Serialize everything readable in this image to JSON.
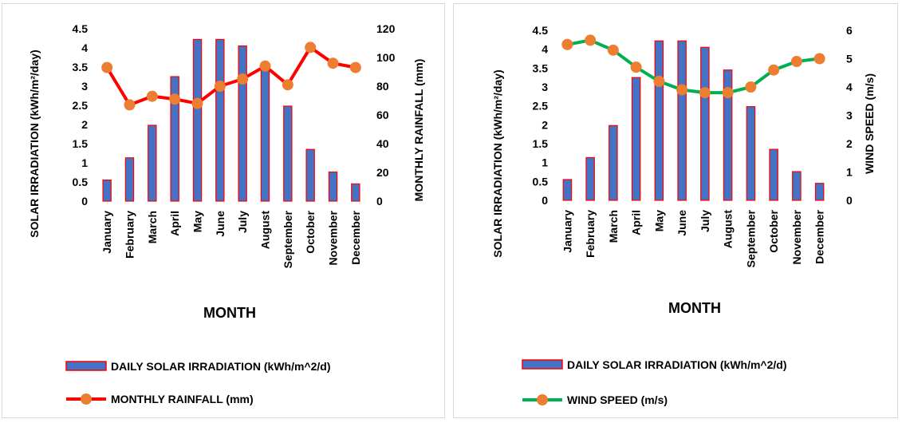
{
  "chart_data": [
    {
      "type": "bar",
      "categories": [
        "January",
        "February",
        "March",
        "April",
        "May",
        "June",
        "July",
        "August",
        "September",
        "October",
        "November",
        "December"
      ],
      "xlabel": "MONTH",
      "ylabel": "SOLAR IRRADIATION (kWh/m²/day)",
      "y2label": "MONTHLY RAINFALL (mm)",
      "ylim": [
        0,
        4.5
      ],
      "y2lim": [
        0,
        120
      ],
      "yticks": [
        "0",
        "0.5",
        "1",
        "1.5",
        "2",
        "2.5",
        "3",
        "3.5",
        "4",
        "4.5"
      ],
      "y2ticks": [
        "0",
        "20",
        "40",
        "60",
        "80",
        "100",
        "120"
      ],
      "grid": false,
      "legend_position": "bottom",
      "series": [
        {
          "name": "DAILY SOLAR IRRADIATION (kWh/m^2/d)",
          "kind": "bar",
          "axis": "left",
          "color": "#4472c4",
          "edge_color": "#ff0000",
          "values": [
            0.55,
            1.13,
            1.98,
            3.25,
            4.22,
            4.22,
            4.05,
            3.45,
            2.48,
            1.35,
            0.76,
            0.45
          ]
        },
        {
          "name": "MONTHLY RAINFALL (mm)",
          "kind": "line",
          "axis": "right",
          "color": "#ff0000",
          "marker_color": "#ed7d31",
          "values": [
            93,
            67,
            73,
            71,
            68,
            80,
            85,
            94,
            81,
            107,
            96,
            93
          ]
        }
      ]
    },
    {
      "type": "bar",
      "categories": [
        "January",
        "February",
        "March",
        "April",
        "May",
        "June",
        "July",
        "August",
        "September",
        "October",
        "November",
        "December"
      ],
      "xlabel": "MONTH",
      "ylabel": "SOLAR IRRADIATION (kWh/m²/day)",
      "y2label": "WIND SPEED (m/s)",
      "ylim": [
        0,
        4.5
      ],
      "y2lim": [
        0,
        6
      ],
      "yticks": [
        "0",
        "0.5",
        "1",
        "1.5",
        "2",
        "2.5",
        "3",
        "3.5",
        "4",
        "4.5"
      ],
      "y2ticks": [
        "0",
        "1",
        "2",
        "3",
        "4",
        "5",
        "6"
      ],
      "grid": false,
      "legend_position": "bottom",
      "series": [
        {
          "name": "DAILY SOLAR IRRADIATION (kWh/m^2/d)",
          "kind": "bar",
          "axis": "left",
          "color": "#4472c4",
          "edge_color": "#ff0000",
          "values": [
            0.55,
            1.13,
            1.98,
            3.25,
            4.22,
            4.22,
            4.05,
            3.45,
            2.48,
            1.35,
            0.76,
            0.45
          ]
        },
        {
          "name": "WIND SPEED (m/s)",
          "kind": "line",
          "axis": "right",
          "color": "#00b050",
          "marker_color": "#ed7d31",
          "values": [
            5.5,
            5.65,
            5.3,
            4.7,
            4.2,
            3.9,
            3.8,
            3.8,
            4.0,
            4.6,
            4.9,
            5.0
          ]
        }
      ]
    }
  ]
}
